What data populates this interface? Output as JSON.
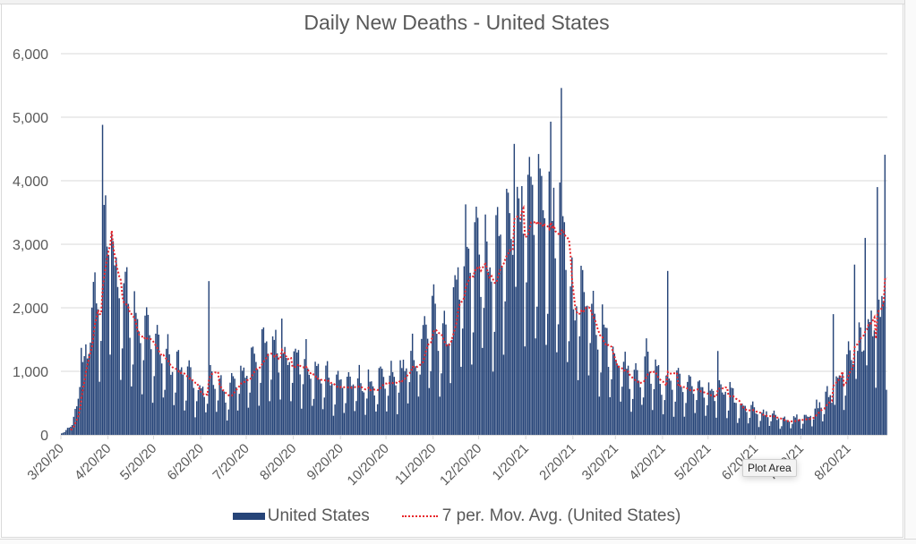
{
  "chart_data": {
    "type": "bar",
    "title": "Daily New Deaths - United States",
    "xlabel": "",
    "ylabel": "",
    "ylim": [
      0,
      6000
    ],
    "y_ticks": [
      0,
      1000,
      2000,
      3000,
      4000,
      5000,
      6000
    ],
    "y_tick_labels": [
      "0",
      "1,000",
      "2,000",
      "3,000",
      "4,000",
      "5,000",
      "6,000"
    ],
    "x_tick_labels": [
      "3/20/20",
      "4/20/20",
      "5/20/20",
      "6/20/20",
      "7/20/20",
      "8/20/20",
      "9/20/20",
      "10/20/20",
      "11/20/20",
      "12/20/20",
      "1/20/21",
      "2/20/21",
      "3/20/21",
      "4/20/21",
      "5/20/21",
      "6/20/21",
      "7/20/21",
      "8/20/21"
    ],
    "x_start": "3/20/20",
    "x_end": "9/14/21",
    "grid": true,
    "legend_position": "bottom",
    "series": [
      {
        "name": "United States",
        "kind": "bar",
        "color": "#264478"
      },
      {
        "name": "7 per. Mov. Avg. (United States)",
        "kind": "line",
        "style": "dotted",
        "color": "#e8262b",
        "window": 7
      }
    ],
    "trend_anchors": [
      {
        "date": "3/20/20",
        "avg": 50
      },
      {
        "date": "3/27/20",
        "avg": 300
      },
      {
        "date": "4/5/20",
        "avg": 1300
      },
      {
        "date": "4/12/20",
        "avg": 1900
      },
      {
        "date": "4/20/20",
        "avg": 2700
      },
      {
        "date": "4/25/20",
        "avg": 2200
      },
      {
        "date": "5/1/20",
        "avg": 1950
      },
      {
        "date": "5/12/20",
        "avg": 1550
      },
      {
        "date": "5/20/20",
        "avg": 1300
      },
      {
        "date": "6/1/20",
        "avg": 1000
      },
      {
        "date": "6/10/20",
        "avg": 850
      },
      {
        "date": "6/20/20",
        "avg": 620
      },
      {
        "date": "6/27/20",
        "avg": 850
      },
      {
        "date": "7/5/20",
        "avg": 560
      },
      {
        "date": "7/15/20",
        "avg": 820
      },
      {
        "date": "7/28/20",
        "avg": 1150
      },
      {
        "date": "8/5/20",
        "avg": 1250
      },
      {
        "date": "8/20/20",
        "avg": 1100
      },
      {
        "date": "9/5/20",
        "avg": 850
      },
      {
        "date": "9/20/20",
        "avg": 750
      },
      {
        "date": "10/10/20",
        "avg": 720
      },
      {
        "date": "10/25/20",
        "avg": 800
      },
      {
        "date": "11/5/20",
        "avg": 1050
      },
      {
        "date": "11/20/20",
        "avg": 1600
      },
      {
        "date": "11/28/20",
        "avg": 1450
      },
      {
        "date": "12/5/20",
        "avg": 2200
      },
      {
        "date": "12/15/20",
        "avg": 2600
      },
      {
        "date": "12/22/20",
        "avg": 2650
      },
      {
        "date": "12/28/20",
        "avg": 2250
      },
      {
        "date": "1/5/21",
        "avg": 2800
      },
      {
        "date": "1/12/21",
        "avg": 3350
      },
      {
        "date": "1/20/21",
        "avg": 3000
      },
      {
        "date": "1/28/21",
        "avg": 3250
      },
      {
        "date": "2/5/21",
        "avg": 3150
      },
      {
        "date": "2/12/21",
        "avg": 2800
      },
      {
        "date": "2/20/21",
        "avg": 1900
      },
      {
        "date": "2/28/21",
        "avg": 2100
      },
      {
        "date": "3/10/21",
        "avg": 1500
      },
      {
        "date": "3/20/21",
        "avg": 1100
      },
      {
        "date": "4/1/21",
        "avg": 850
      },
      {
        "date": "4/10/21",
        "avg": 1000
      },
      {
        "date": "4/20/21",
        "avg": 750
      },
      {
        "date": "5/10/21",
        "avg": 700
      },
      {
        "date": "5/20/21",
        "avg": 580
      },
      {
        "date": "6/1/21",
        "avg": 650
      },
      {
        "date": "6/10/21",
        "avg": 400
      },
      {
        "date": "6/25/21",
        "avg": 300
      },
      {
        "date": "7/10/21",
        "avg": 220
      },
      {
        "date": "7/25/21",
        "avg": 270
      },
      {
        "date": "8/5/21",
        "avg": 500
      },
      {
        "date": "8/20/21",
        "avg": 1000
      },
      {
        "date": "9/1/21",
        "avg": 1400
      },
      {
        "date": "9/8/21",
        "avg": 1580
      },
      {
        "date": "9/14/21",
        "avg": 1680
      }
    ],
    "notable_spikes": [
      {
        "date": "4/16/20",
        "value": 4880
      },
      {
        "date": "4/18/20",
        "value": 3770
      },
      {
        "date": "4/22/20",
        "value": 3170
      },
      {
        "date": "6/25/20",
        "value": 2420
      },
      {
        "date": "8/12/20",
        "value": 1830
      },
      {
        "date": "1/12/21",
        "value": 4580
      },
      {
        "date": "2/12/21",
        "value": 5460
      },
      {
        "date": "2/5/21",
        "value": 4930
      },
      {
        "date": "4/23/21",
        "value": 2580
      },
      {
        "date": "5/26/21",
        "value": 1320
      },
      {
        "date": "8/10/21",
        "value": 1900
      },
      {
        "date": "8/24/21",
        "value": 2680
      },
      {
        "date": "8/31/21",
        "value": 3100
      },
      {
        "date": "9/8/21",
        "value": 3900
      },
      {
        "date": "9/13/21",
        "value": 4410
      }
    ]
  },
  "legend": {
    "bar_label": "United States",
    "line_label": "7 per. Mov. Avg. (United States)"
  },
  "tooltip": {
    "text": "Plot Area"
  }
}
